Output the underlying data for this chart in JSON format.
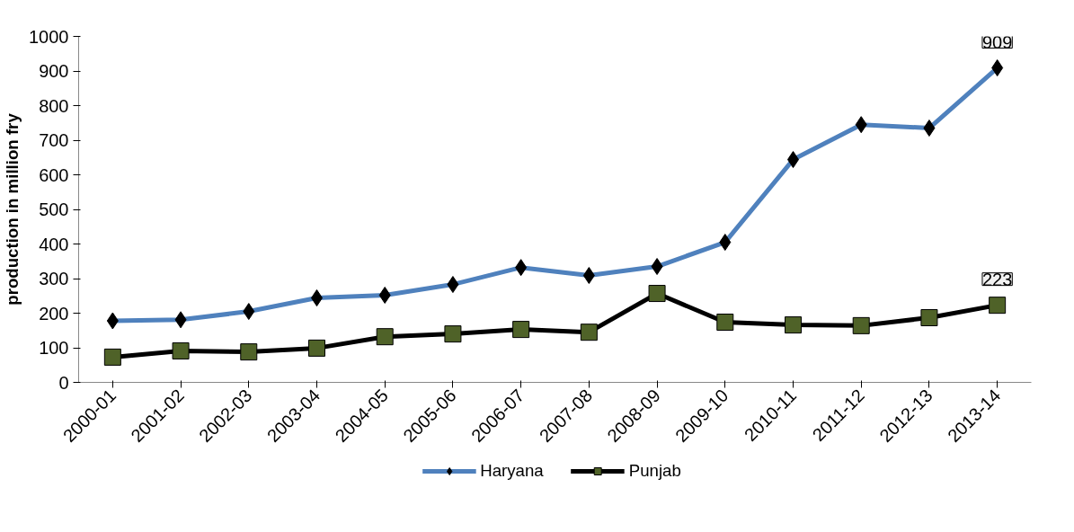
{
  "chart_data": {
    "type": "line",
    "ylabel": "production in million fry",
    "categories": [
      "2000-01",
      "2001-02",
      "2002-03",
      "2003-04",
      "2004-05",
      "2005-06",
      "2006-07",
      "2007-08",
      "2008-09",
      "2009-10",
      "2010-11",
      "2011-12",
      "2012-13",
      "2013-14"
    ],
    "series": [
      {
        "name": "Haryana",
        "color": "#4f81bd",
        "marker": "diamond",
        "values": [
          178,
          181,
          205,
          244,
          252,
          283,
          332,
          309,
          335,
          405,
          644,
          745,
          735,
          909
        ],
        "value_labels": [
          null,
          null,
          null,
          null,
          null,
          null,
          null,
          null,
          null,
          null,
          null,
          null,
          null,
          "909"
        ]
      },
      {
        "name": "Punjab",
        "color": "#000000",
        "marker": "square",
        "values": [
          73,
          91,
          88,
          99,
          132,
          140,
          153,
          145,
          257,
          174,
          166,
          164,
          187,
          223
        ],
        "value_labels": [
          null,
          null,
          null,
          null,
          null,
          null,
          null,
          null,
          null,
          null,
          null,
          null,
          null,
          "223"
        ]
      }
    ],
    "ylim": [
      0,
      1000
    ],
    "yticks": [
      0,
      100,
      200,
      300,
      400,
      500,
      600,
      700,
      800,
      900,
      1000
    ],
    "grid": false,
    "legend": "bottom"
  }
}
